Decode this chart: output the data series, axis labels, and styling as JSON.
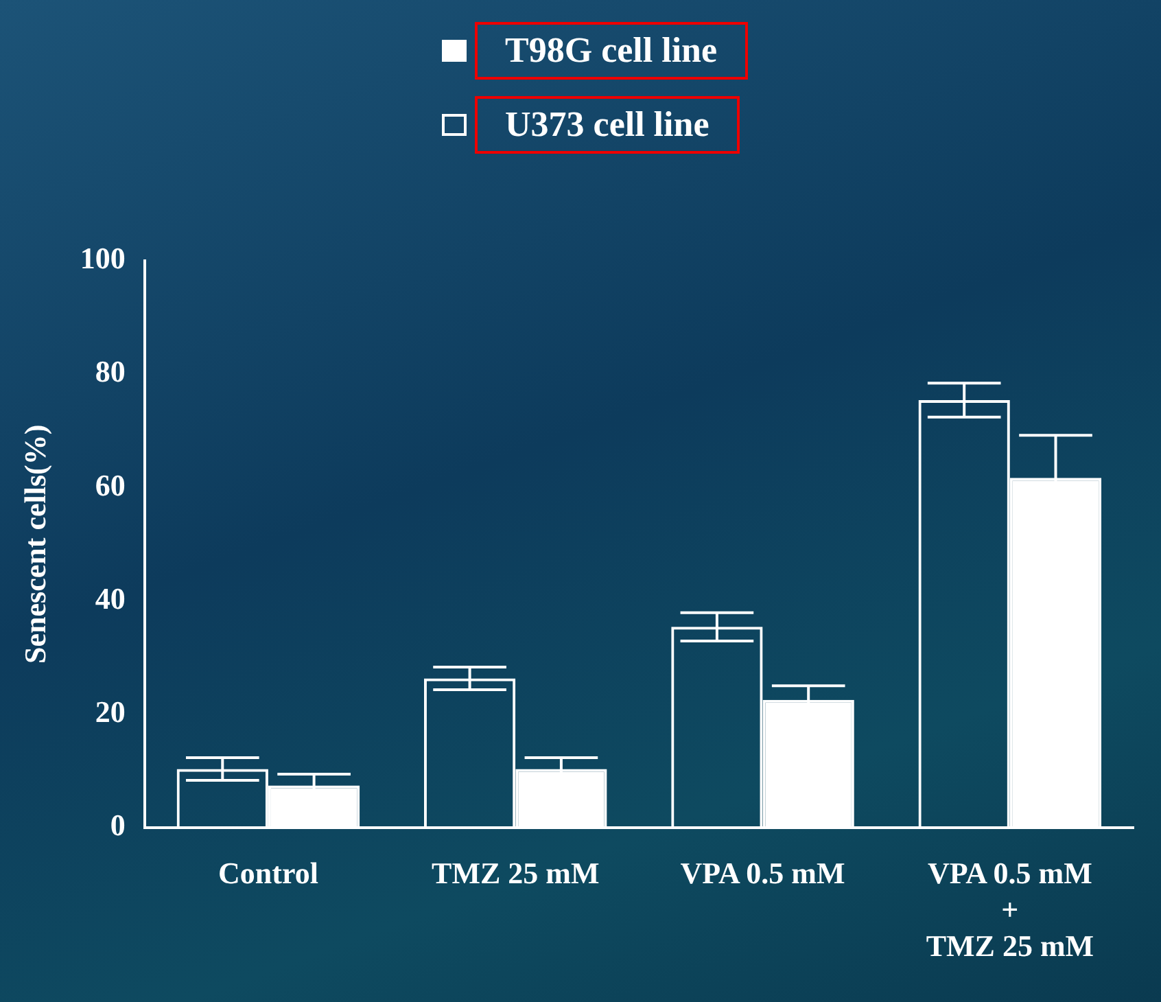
{
  "chart_data": {
    "type": "bar",
    "ylabel": "Senescent cells(%)",
    "categories": [
      "Control",
      "TMZ 25 mM",
      "VPA 0.5 mM",
      "VPA 0.5 mM\n+\nTMZ 25 mM"
    ],
    "series": [
      {
        "name": "U373 cell line",
        "color": "#ffffff",
        "values": [
          10.3,
          26.3,
          35.4,
          75.4
        ],
        "errors": [
          2,
          2,
          2.5,
          3
        ]
      },
      {
        "name": "T98G cell line",
        "color": "#ffffff",
        "values": [
          7.4,
          10.3,
          22.5,
          61.7
        ],
        "errors": [
          2,
          2,
          2.5,
          7.5
        ]
      }
    ],
    "ylim": [
      0,
      100
    ],
    "yticks": [
      0,
      20,
      40,
      60,
      80,
      100
    ],
    "grid": false,
    "legend": "top"
  }
}
